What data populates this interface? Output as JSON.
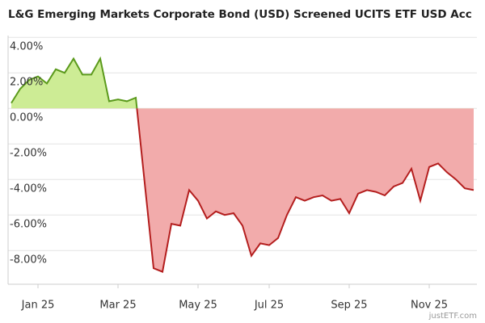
{
  "chart_data": {
    "type": "area",
    "title": "L&G Emerging Markets Corporate Bond (USD) Screened UCITS ETF USD Acc",
    "watermark": "justETF.com",
    "categories": [
      null,
      null,
      null,
      "Jan 25",
      null,
      null,
      null,
      null,
      null,
      null,
      null,
      null,
      "Mar 25",
      null,
      null,
      null,
      null,
      null,
      null,
      null,
      null,
      "May 25",
      null,
      null,
      null,
      null,
      null,
      null,
      null,
      "Jul 25",
      null,
      null,
      null,
      null,
      null,
      null,
      null,
      null,
      "Sep 25",
      null,
      null,
      null,
      null,
      null,
      null,
      null,
      null,
      "Nov 25",
      null,
      null,
      null,
      null,
      null
    ],
    "values": [
      0.3,
      1.1,
      1.6,
      1.8,
      1.4,
      2.2,
      2.0,
      2.8,
      1.9,
      1.9,
      2.8,
      0.4,
      0.5,
      0.4,
      0.6,
      -4.2,
      -9.0,
      -9.2,
      -6.5,
      -6.6,
      -4.6,
      -5.2,
      -6.2,
      -5.8,
      -6.0,
      -5.9,
      -6.6,
      -8.3,
      -7.6,
      -7.7,
      -7.3,
      -6.0,
      -5.0,
      -5.2,
      -5.0,
      -4.9,
      -5.2,
      -5.1,
      -5.9,
      -4.8,
      -4.6,
      -4.7,
      -4.9,
      -4.4,
      -4.2,
      -3.4,
      -5.2,
      -3.3,
      -3.1,
      -3.6,
      -4.0,
      -4.5,
      -4.6
    ],
    "positive_color": "#5b9a1c",
    "positive_fill": "#cdec95",
    "negative_color": "#b41e1e",
    "negative_fill": "#f2abab",
    "ylim": [
      -9.9,
      4.1
    ],
    "yticks": [
      {
        "value": 4,
        "label": "4.00%"
      },
      {
        "value": 2,
        "label": "2.00%"
      },
      {
        "value": 0,
        "label": "0.00%"
      },
      {
        "value": -2,
        "label": "-2.00%"
      },
      {
        "value": -4,
        "label": "-4.00%"
      },
      {
        "value": -6,
        "label": "-6.00%"
      },
      {
        "value": -8,
        "label": "-8.00%"
      }
    ],
    "grid": true
  }
}
